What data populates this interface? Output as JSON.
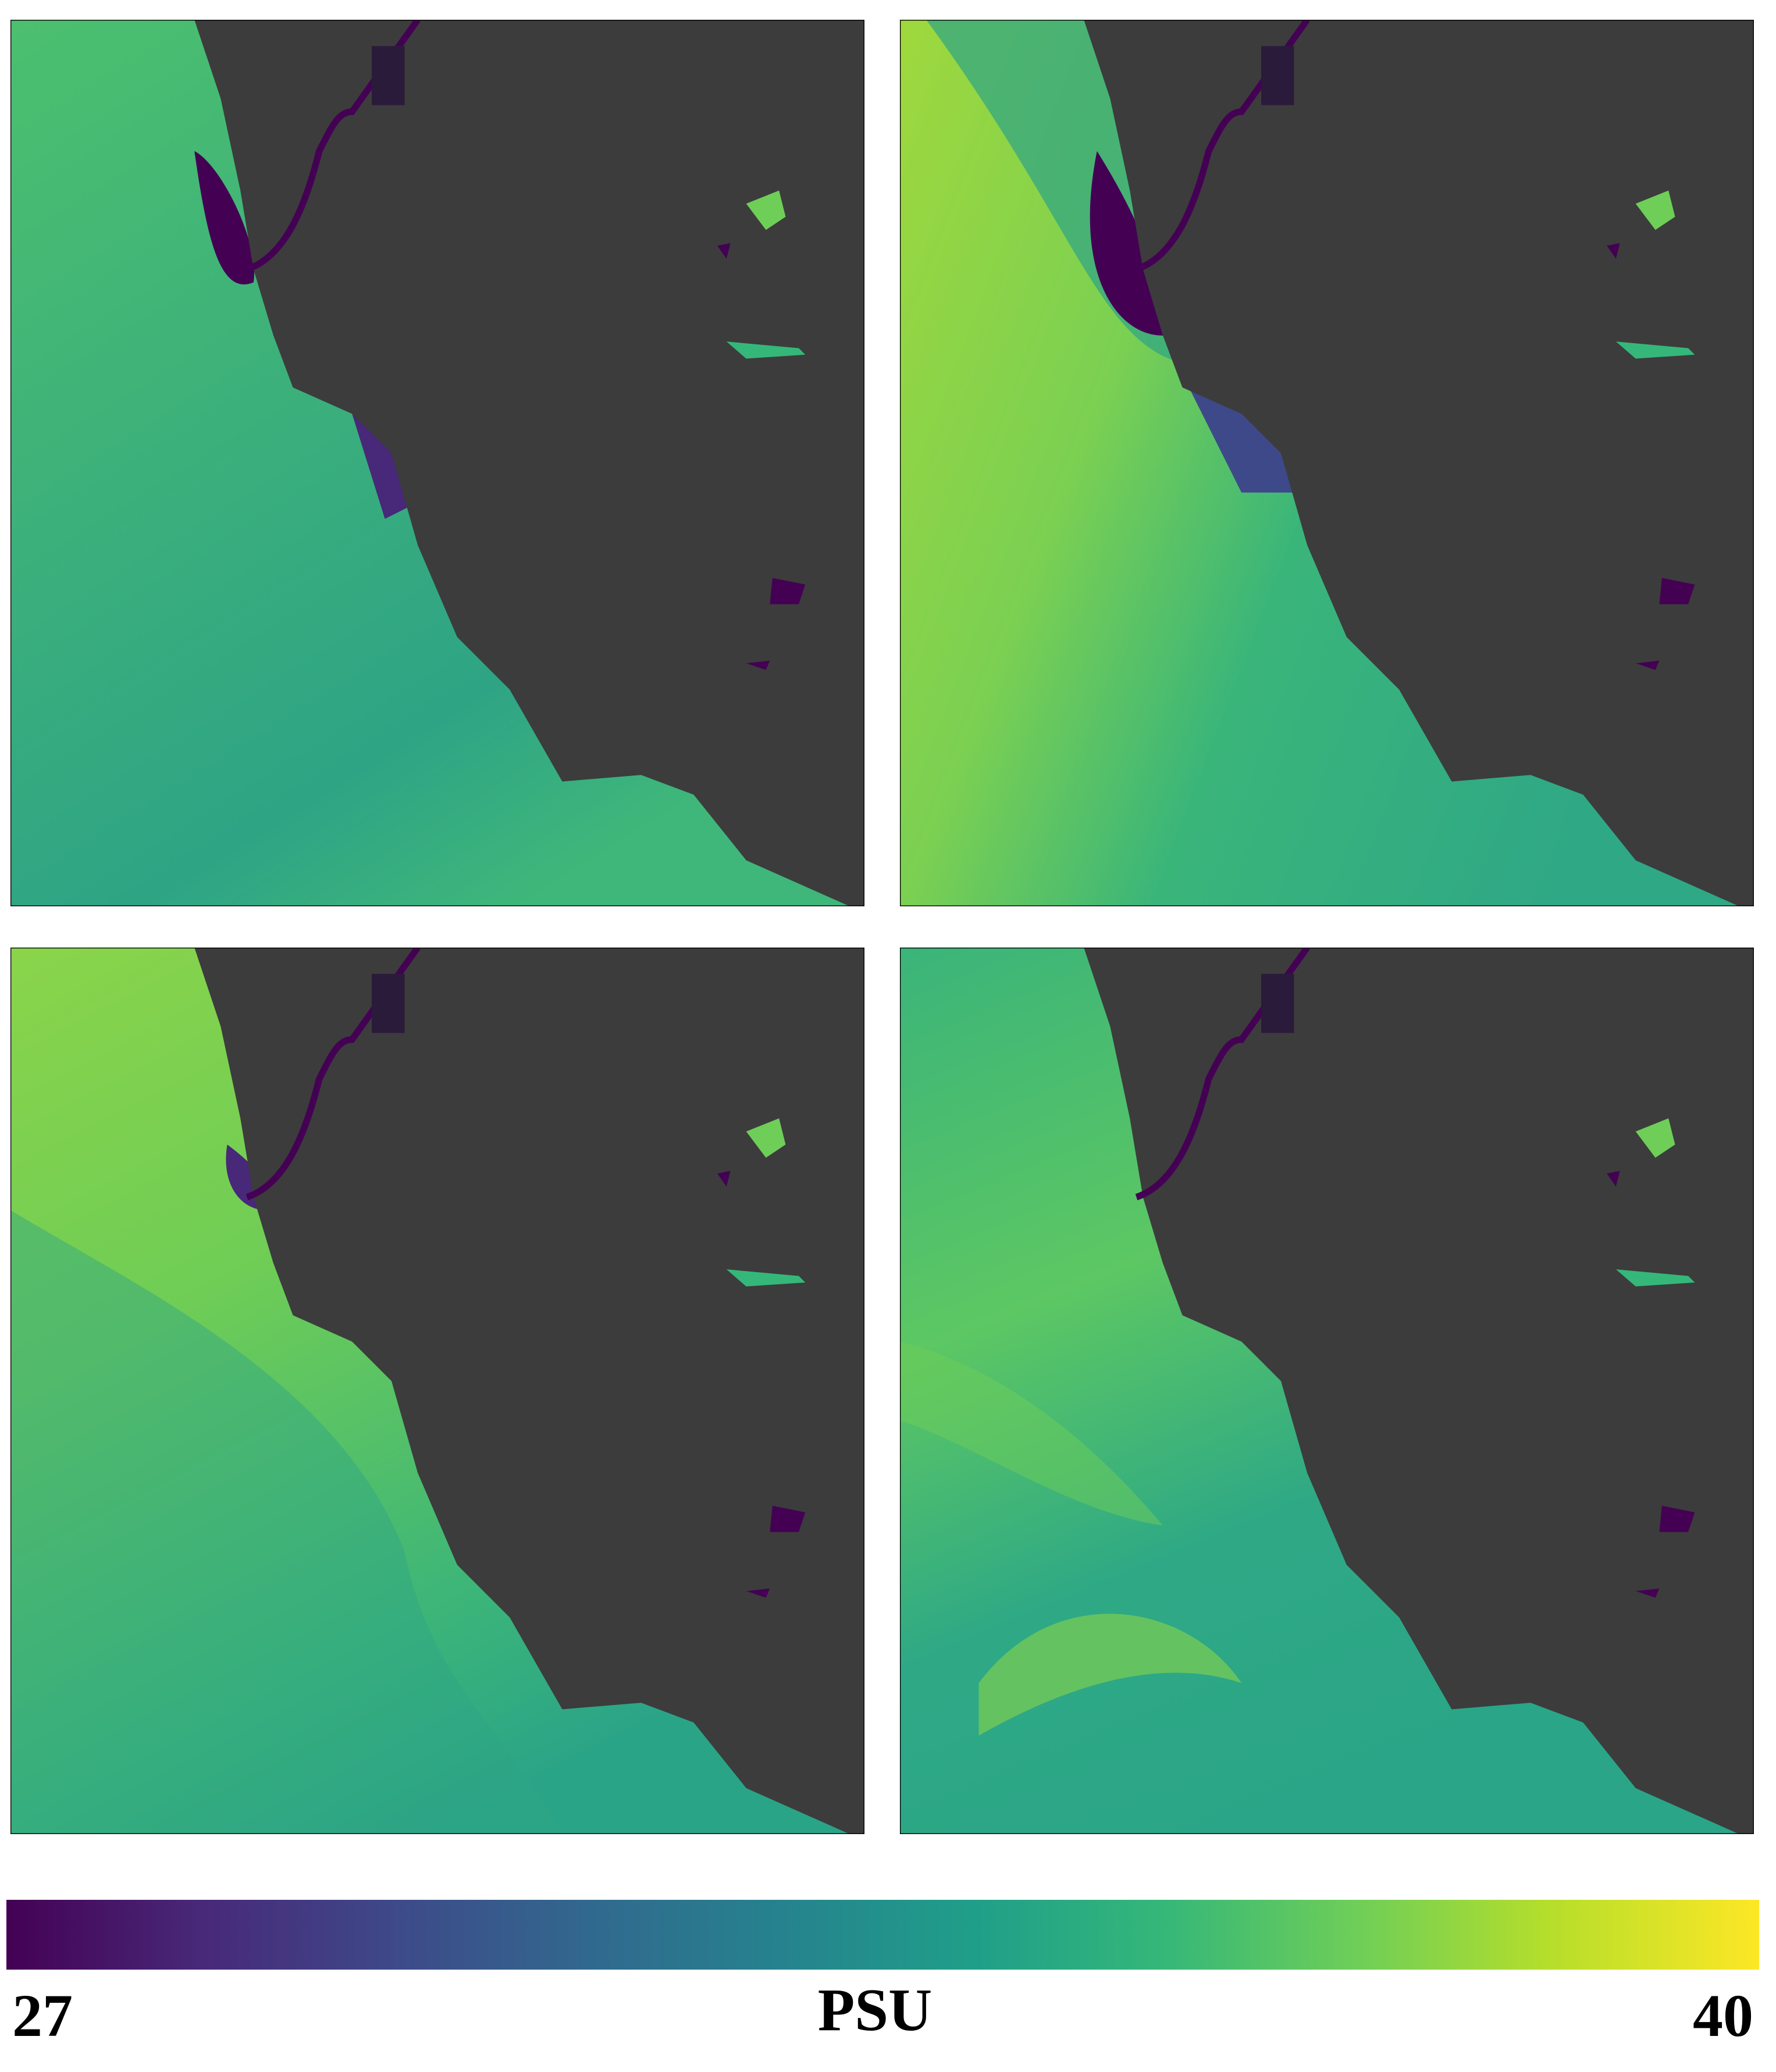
{
  "colorbar": {
    "label": "PSU",
    "min": 27,
    "max": 40,
    "ticks": [
      27,
      40
    ]
  }
}
